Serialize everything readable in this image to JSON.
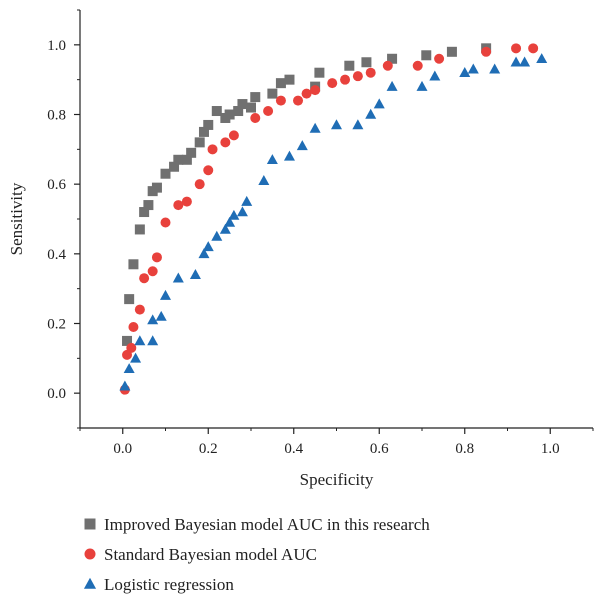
{
  "chart_data": {
    "type": "scatter",
    "title": "",
    "xlabel": "Specificity",
    "ylabel": "Sensitivity",
    "xlim": [
      -0.1,
      1.1
    ],
    "ylim": [
      -0.1,
      1.1
    ],
    "xticks": [
      0.0,
      0.2,
      0.4,
      0.6,
      0.8,
      1.0
    ],
    "yticks": [
      0.0,
      0.2,
      0.4,
      0.6,
      0.8,
      1.0
    ],
    "xtick_labels": [
      "0.0",
      "0.2",
      "0.4",
      "0.6",
      "0.8",
      "1.0"
    ],
    "ytick_labels": [
      "0.0",
      "0.2",
      "0.4",
      "0.6",
      "0.8",
      "1.0"
    ],
    "grid": false,
    "legend_position": "bottom",
    "series": [
      {
        "name": "Improved Bayesian model AUC in this research",
        "marker": "square",
        "color": "#707070",
        "points": [
          [
            0.01,
            0.15
          ],
          [
            0.015,
            0.27
          ],
          [
            0.025,
            0.37
          ],
          [
            0.04,
            0.47
          ],
          [
            0.05,
            0.52
          ],
          [
            0.06,
            0.54
          ],
          [
            0.07,
            0.58
          ],
          [
            0.08,
            0.59
          ],
          [
            0.1,
            0.63
          ],
          [
            0.12,
            0.65
          ],
          [
            0.13,
            0.67
          ],
          [
            0.15,
            0.67
          ],
          [
            0.16,
            0.69
          ],
          [
            0.18,
            0.72
          ],
          [
            0.19,
            0.75
          ],
          [
            0.2,
            0.77
          ],
          [
            0.22,
            0.81
          ],
          [
            0.24,
            0.79
          ],
          [
            0.25,
            0.8
          ],
          [
            0.27,
            0.81
          ],
          [
            0.28,
            0.83
          ],
          [
            0.3,
            0.82
          ],
          [
            0.31,
            0.85
          ],
          [
            0.35,
            0.86
          ],
          [
            0.37,
            0.89
          ],
          [
            0.39,
            0.9
          ],
          [
            0.45,
            0.88
          ],
          [
            0.46,
            0.92
          ],
          [
            0.53,
            0.94
          ],
          [
            0.57,
            0.95
          ],
          [
            0.63,
            0.96
          ],
          [
            0.71,
            0.97
          ],
          [
            0.77,
            0.98
          ],
          [
            0.85,
            0.99
          ]
        ]
      },
      {
        "name": "Standard Bayesian model AUC",
        "marker": "circle",
        "color": "#e8413c",
        "points": [
          [
            0.005,
            0.01
          ],
          [
            0.01,
            0.11
          ],
          [
            0.02,
            0.13
          ],
          [
            0.025,
            0.19
          ],
          [
            0.04,
            0.24
          ],
          [
            0.05,
            0.33
          ],
          [
            0.07,
            0.35
          ],
          [
            0.08,
            0.39
          ],
          [
            0.1,
            0.49
          ],
          [
            0.13,
            0.54
          ],
          [
            0.15,
            0.55
          ],
          [
            0.18,
            0.6
          ],
          [
            0.2,
            0.64
          ],
          [
            0.21,
            0.7
          ],
          [
            0.24,
            0.72
          ],
          [
            0.26,
            0.74
          ],
          [
            0.31,
            0.79
          ],
          [
            0.34,
            0.81
          ],
          [
            0.37,
            0.84
          ],
          [
            0.41,
            0.84
          ],
          [
            0.43,
            0.86
          ],
          [
            0.45,
            0.87
          ],
          [
            0.49,
            0.89
          ],
          [
            0.52,
            0.9
          ],
          [
            0.55,
            0.91
          ],
          [
            0.58,
            0.92
          ],
          [
            0.62,
            0.94
          ],
          [
            0.69,
            0.94
          ],
          [
            0.74,
            0.96
          ],
          [
            0.85,
            0.98
          ],
          [
            0.92,
            0.99
          ],
          [
            0.96,
            0.99
          ]
        ]
      },
      {
        "name": "Logistic regression",
        "marker": "triangle",
        "color": "#1f6db5",
        "points": [
          [
            0.005,
            0.02
          ],
          [
            0.015,
            0.07
          ],
          [
            0.03,
            0.1
          ],
          [
            0.04,
            0.15
          ],
          [
            0.07,
            0.15
          ],
          [
            0.07,
            0.21
          ],
          [
            0.09,
            0.22
          ],
          [
            0.1,
            0.28
          ],
          [
            0.13,
            0.33
          ],
          [
            0.17,
            0.34
          ],
          [
            0.19,
            0.4
          ],
          [
            0.2,
            0.42
          ],
          [
            0.22,
            0.45
          ],
          [
            0.24,
            0.47
          ],
          [
            0.25,
            0.49
          ],
          [
            0.26,
            0.51
          ],
          [
            0.28,
            0.52
          ],
          [
            0.29,
            0.55
          ],
          [
            0.33,
            0.61
          ],
          [
            0.35,
            0.67
          ],
          [
            0.39,
            0.68
          ],
          [
            0.42,
            0.71
          ],
          [
            0.45,
            0.76
          ],
          [
            0.5,
            0.77
          ],
          [
            0.55,
            0.77
          ],
          [
            0.58,
            0.8
          ],
          [
            0.6,
            0.83
          ],
          [
            0.63,
            0.88
          ],
          [
            0.7,
            0.88
          ],
          [
            0.73,
            0.91
          ],
          [
            0.8,
            0.92
          ],
          [
            0.82,
            0.93
          ],
          [
            0.87,
            0.93
          ],
          [
            0.92,
            0.95
          ],
          [
            0.94,
            0.95
          ],
          [
            0.98,
            0.96
          ]
        ]
      }
    ]
  }
}
